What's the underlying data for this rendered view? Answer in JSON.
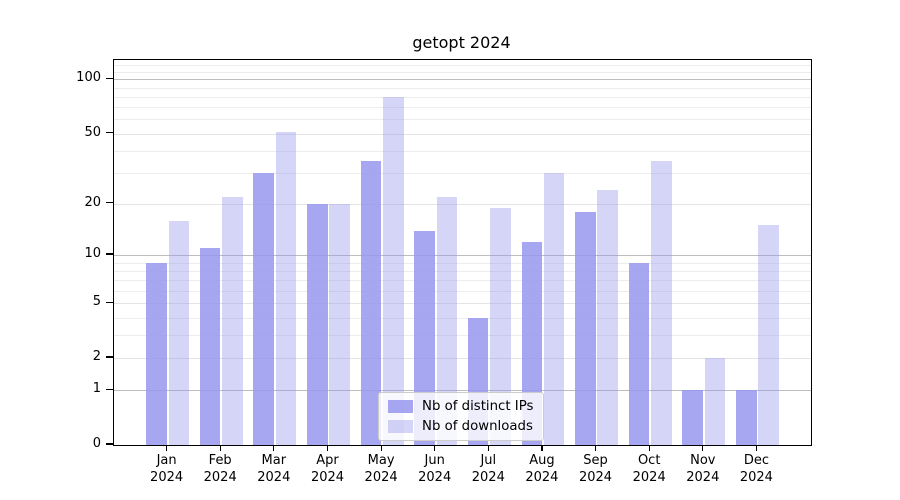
{
  "chart_data": {
    "type": "bar",
    "title": "getopt 2024",
    "categories": [
      {
        "month": "Jan",
        "year": "2024"
      },
      {
        "month": "Feb",
        "year": "2024"
      },
      {
        "month": "Mar",
        "year": "2024"
      },
      {
        "month": "Apr",
        "year": "2024"
      },
      {
        "month": "May",
        "year": "2024"
      },
      {
        "month": "Jun",
        "year": "2024"
      },
      {
        "month": "Jul",
        "year": "2024"
      },
      {
        "month": "Aug",
        "year": "2024"
      },
      {
        "month": "Sep",
        "year": "2024"
      },
      {
        "month": "Oct",
        "year": "2024"
      },
      {
        "month": "Nov",
        "year": "2024"
      },
      {
        "month": "Dec",
        "year": "2024"
      }
    ],
    "series": [
      {
        "name": "Nb of distinct IPs",
        "color": "rgba(150,150,238,0.85)",
        "values": [
          9,
          11,
          30,
          20,
          35,
          14,
          4,
          12,
          18,
          9,
          1,
          1
        ]
      },
      {
        "name": "Nb of downloads",
        "color": "rgba(150,150,238,0.40)",
        "values": [
          16,
          22,
          51,
          20,
          80,
          22,
          19,
          30,
          24,
          35,
          2,
          15
        ]
      }
    ],
    "y_scale": "log1p",
    "ylim": [
      0,
      128
    ],
    "y_ticks": [
      0,
      1,
      2,
      5,
      10,
      20,
      50,
      100
    ],
    "y_decade_ticks": [
      1,
      10,
      100
    ],
    "y_minor_ticks": [
      3,
      4,
      6,
      7,
      8,
      9,
      30,
      40,
      60,
      70,
      80,
      90,
      110,
      120
    ],
    "grid": true,
    "legend_position": "lower center",
    "colors": {
      "grid_major": "#bdbdbd",
      "grid_sub": "#e4e4e4",
      "grid_minor": "#ededed",
      "spine": "#000000",
      "text": "#000000"
    }
  }
}
